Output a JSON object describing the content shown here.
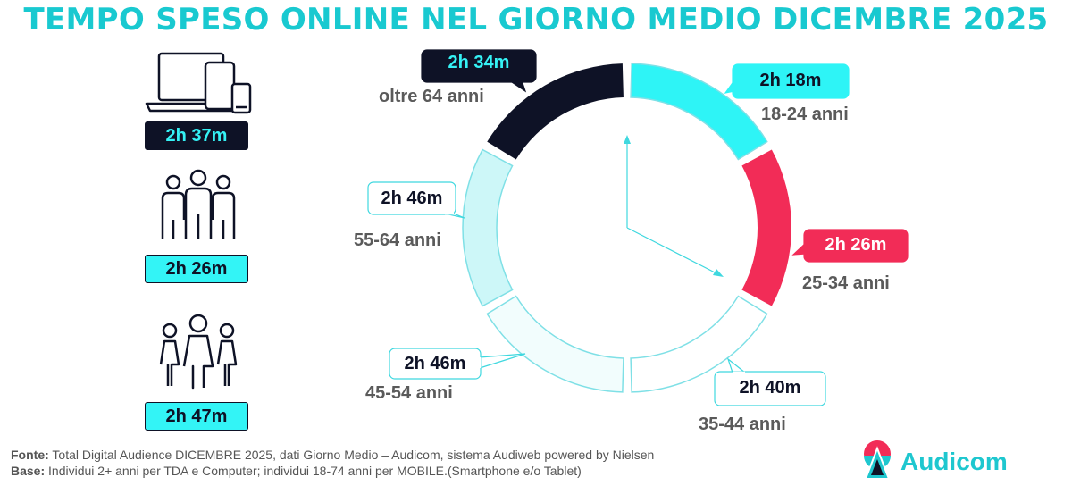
{
  "title": "TEMPO SPESO ONLINE NEL GIORNO MEDIO DICEMBRE 2025",
  "left_panel": [
    {
      "icon": "devices-icon",
      "value": "2h 37m",
      "style": "dark"
    },
    {
      "icon": "men-group-icon",
      "value": "2h 26m",
      "style": "cyan"
    },
    {
      "icon": "women-group-icon",
      "value": "2h 47m",
      "style": "cyan"
    }
  ],
  "chart_data": {
    "type": "donut",
    "categories": [
      "18-24 anni",
      "25-34 anni",
      "35-44 anni",
      "45-54 anni",
      "55-64 anni",
      "oltre 64 anni"
    ],
    "value_labels": [
      "2h 18m",
      "2h 26m",
      "2h 40m",
      "2h 46m",
      "2h 46m",
      "2h 34m"
    ],
    "values_minutes": [
      138,
      146,
      160,
      166,
      166,
      154
    ],
    "colors": [
      "#2ef4f6",
      "#f22c57",
      "#ffffff",
      "#f2fdfd",
      "#cdf7f8",
      "#0e1226"
    ],
    "outline_color": "#7fe0e6"
  },
  "footer": {
    "fonte_label": "Fonte:",
    "fonte_text": " Total Digital Audience DICEMBRE 2025, dati Giorno Medio – Audicom, sistema Audiweb powered by Nielsen",
    "base_label": "Base:",
    "base_text": "  Individui 2+ anni per TDA e Computer; individui 18-74 anni per MOBILE.(Smartphone e/o Tablet)"
  },
  "brand": {
    "name": "Audicom",
    "colors": [
      "#f22c57",
      "#1ec7cf",
      "#0e1226"
    ]
  }
}
